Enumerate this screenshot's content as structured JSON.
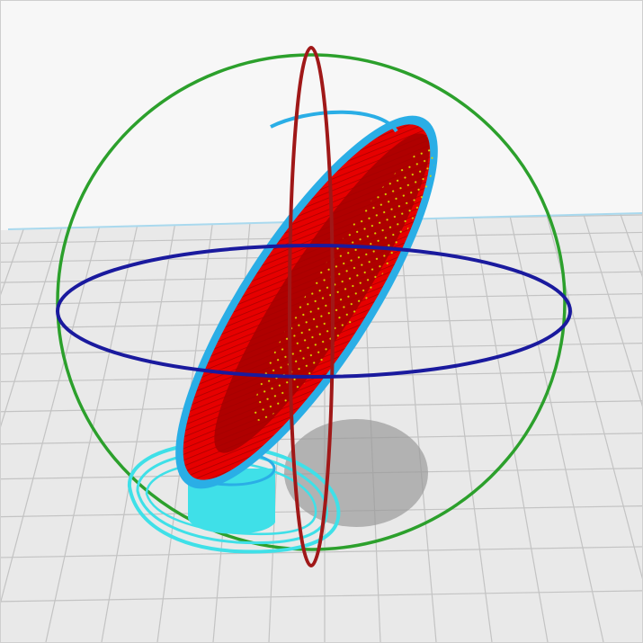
{
  "viewport": {
    "name": "3d-slice-preview",
    "background_color": "#f7f7f7",
    "floor_color": "#e9e9e9",
    "floor_line_color": "#c3c3c3",
    "floor_edge_color": "#a9d9ee"
  },
  "model": {
    "name": "tilted-disc-with-stem",
    "infill_color": "#e60000",
    "infill_dark_color": "#a40000",
    "perimeter_color": "#2aaee6",
    "support_color": "#3fe0e8",
    "sparse_infill_color": "#d8d400",
    "shadow_color": "#9a9a9a"
  },
  "rotation_gizmo": {
    "name": "rotate-gizmo",
    "rings": [
      {
        "axis": "x",
        "name": "rotate-ring-x",
        "color": "#a01818"
      },
      {
        "axis": "y",
        "name": "rotate-ring-y",
        "color": "#2ca02c"
      },
      {
        "axis": "z",
        "name": "rotate-ring-z",
        "color": "#1a1a9e"
      }
    ]
  }
}
